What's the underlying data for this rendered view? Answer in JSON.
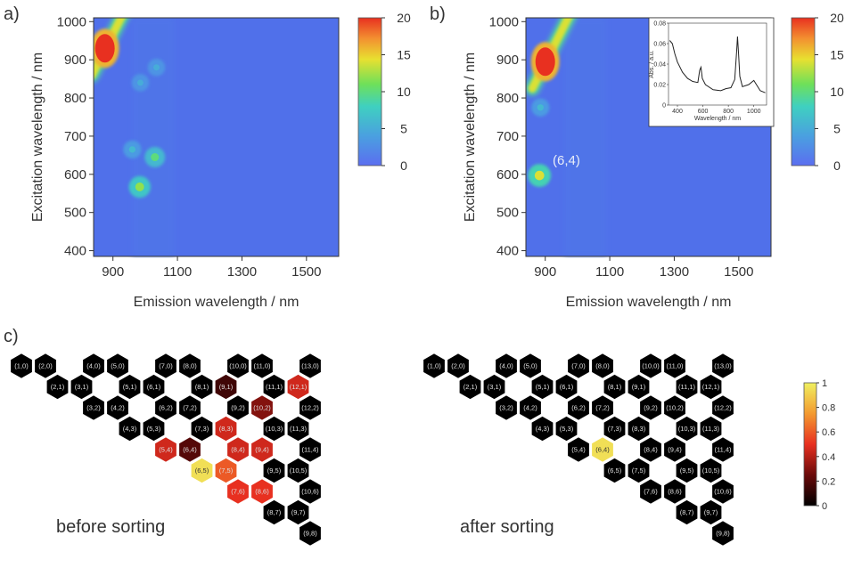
{
  "panels": {
    "a": {
      "letter": "a)"
    },
    "b": {
      "letter": "b)",
      "annotation": "(6,4)"
    },
    "c": {
      "letter": "c)"
    }
  },
  "chart_data": [
    {
      "type": "heatmap",
      "panel": "a)",
      "xlabel": "Emission wavelength / nm",
      "ylabel": "Excitation wavelength / nm",
      "xticks": [
        900,
        1100,
        1300,
        1500
      ],
      "yticks": [
        400,
        500,
        600,
        700,
        800,
        900,
        1000
      ],
      "xlim": [
        840,
        1600
      ],
      "ylim": [
        385,
        1010
      ],
      "colorbar": {
        "ticks": [
          0,
          5,
          10,
          15,
          20
        ],
        "range": [
          0,
          20
        ]
      },
      "features": [
        {
          "em": 875,
          "ex": 930,
          "intensity": 20,
          "kind": "scatter-diagonal"
        },
        {
          "em": 983,
          "ex": 567,
          "intensity": 12
        },
        {
          "em": 1030,
          "ex": 645,
          "intensity": 10
        },
        {
          "em": 960,
          "ex": 665,
          "intensity": 6
        },
        {
          "em": 985,
          "ex": 840,
          "intensity": 5
        },
        {
          "em": 1035,
          "ex": 880,
          "intensity": 5
        }
      ]
    },
    {
      "type": "heatmap",
      "panel": "b)",
      "xlabel": "Emission wavelength / nm",
      "ylabel": "Excitation wavelength / nm",
      "xticks": [
        900,
        1100,
        1300,
        1500
      ],
      "yticks": [
        400,
        500,
        600,
        700,
        800,
        900,
        1000
      ],
      "xlim": [
        840,
        1600
      ],
      "ylim": [
        385,
        1010
      ],
      "colorbar": {
        "ticks": [
          0,
          5,
          10,
          15,
          20
        ],
        "range": [
          0,
          20
        ]
      },
      "features": [
        {
          "em": 900,
          "ex": 895,
          "intensity": 20,
          "kind": "scatter-diagonal"
        },
        {
          "em": 882,
          "ex": 597,
          "intensity": 14
        },
        {
          "em": 885,
          "ex": 775,
          "intensity": 6
        }
      ],
      "inset": {
        "type": "line",
        "xlabel": "Wavelength / nm",
        "ylabel": "Abs. / a.u.",
        "xticks": [
          400,
          600,
          800,
          1000
        ],
        "yticks": [
          "0",
          "0.02",
          "0.04",
          "0.06",
          "0.08"
        ],
        "xlim": [
          330,
          1100
        ],
        "ylim": [
          0,
          0.08
        ],
        "x": [
          340,
          360,
          380,
          400,
          440,
          480,
          520,
          560,
          575,
          585,
          595,
          620,
          680,
          740,
          780,
          820,
          850,
          865,
          872,
          880,
          890,
          910,
          960,
          1000,
          1050,
          1090
        ],
        "y": [
          0.063,
          0.06,
          0.05,
          0.042,
          0.032,
          0.026,
          0.023,
          0.022,
          0.034,
          0.037,
          0.026,
          0.02,
          0.015,
          0.014,
          0.016,
          0.017,
          0.025,
          0.052,
          0.067,
          0.05,
          0.028,
          0.018,
          0.02,
          0.024,
          0.014,
          0.012
        ]
      }
    }
  ],
  "maps": {
    "colorbar_ticks": [
      "1",
      "0.8",
      "0.6",
      "0.4",
      "0.2",
      "0"
    ],
    "chiralities": [
      {
        "id": "(1,0)",
        "p": 0,
        "q": 0
      },
      {
        "id": "(2,0)",
        "p": 1,
        "q": 0
      },
      {
        "id": "(4,0)",
        "p": 3,
        "q": 0
      },
      {
        "id": "(5,0)",
        "p": 4,
        "q": 0
      },
      {
        "id": "(7,0)",
        "p": 6,
        "q": 0
      },
      {
        "id": "(8,0)",
        "p": 7,
        "q": 0
      },
      {
        "id": "(10,0)",
        "p": 9,
        "q": 0
      },
      {
        "id": "(11,0)",
        "p": 10,
        "q": 0
      },
      {
        "id": "(13,0)",
        "p": 12,
        "q": 0
      },
      {
        "id": "(2,1)",
        "p": 1,
        "q": 1
      },
      {
        "id": "(3,1)",
        "p": 2,
        "q": 1
      },
      {
        "id": "(5,1)",
        "p": 4,
        "q": 1
      },
      {
        "id": "(6,1)",
        "p": 5,
        "q": 1
      },
      {
        "id": "(8,1)",
        "p": 7,
        "q": 1
      },
      {
        "id": "(9,1)",
        "p": 8,
        "q": 1
      },
      {
        "id": "(11,1)",
        "p": 10,
        "q": 1
      },
      {
        "id": "(12,1)",
        "p": 11,
        "q": 1
      },
      {
        "id": "(3,2)",
        "p": 2,
        "q": 2
      },
      {
        "id": "(4,2)",
        "p": 3,
        "q": 2
      },
      {
        "id": "(6,2)",
        "p": 5,
        "q": 2
      },
      {
        "id": "(7,2)",
        "p": 6,
        "q": 2
      },
      {
        "id": "(9,2)",
        "p": 8,
        "q": 2
      },
      {
        "id": "(10,2)",
        "p": 9,
        "q": 2
      },
      {
        "id": "(12,2)",
        "p": 11,
        "q": 2
      },
      {
        "id": "(4,3)",
        "p": 3,
        "q": 3
      },
      {
        "id": "(5,3)",
        "p": 4,
        "q": 3
      },
      {
        "id": "(7,3)",
        "p": 6,
        "q": 3
      },
      {
        "id": "(8,3)",
        "p": 7,
        "q": 3
      },
      {
        "id": "(10,3)",
        "p": 9,
        "q": 3
      },
      {
        "id": "(11,3)",
        "p": 10,
        "q": 3
      },
      {
        "id": "(5,4)",
        "p": 4,
        "q": 4
      },
      {
        "id": "(6,4)",
        "p": 5,
        "q": 4
      },
      {
        "id": "(8,4)",
        "p": 7,
        "q": 4
      },
      {
        "id": "(9,4)",
        "p": 8,
        "q": 4
      },
      {
        "id": "(11,4)",
        "p": 10,
        "q": 4
      },
      {
        "id": "(6,5)",
        "p": 5,
        "q": 5
      },
      {
        "id": "(7,5)",
        "p": 6,
        "q": 5
      },
      {
        "id": "(9,5)",
        "p": 8,
        "q": 5
      },
      {
        "id": "(10,5)",
        "p": 9,
        "q": 5
      },
      {
        "id": "(7,6)",
        "p": 6,
        "q": 6
      },
      {
        "id": "(8,6)",
        "p": 7,
        "q": 6
      },
      {
        "id": "(10,6)",
        "p": 9,
        "q": 6
      },
      {
        "id": "(8,7)",
        "p": 7,
        "q": 7
      },
      {
        "id": "(9,7)",
        "p": 8,
        "q": 7
      },
      {
        "id": "(9,8)",
        "p": 8,
        "q": 8
      }
    ],
    "before": {
      "label": "before sorting",
      "values": {
        "(9,1)": 0.15,
        "(12,1)": 0.45,
        "(10,2)": 0.3,
        "(8,3)": 0.45,
        "(5,4)": 0.45,
        "(6,4)": 0.2,
        "(8,4)": 0.45,
        "(9,4)": 0.45,
        "(6,5)": 0.95,
        "(7,5)": 0.6,
        "(7,6)": 0.5,
        "(8,6)": 0.5
      }
    },
    "after": {
      "label": "after sorting",
      "values": {
        "(6,4)": 0.95
      }
    }
  }
}
